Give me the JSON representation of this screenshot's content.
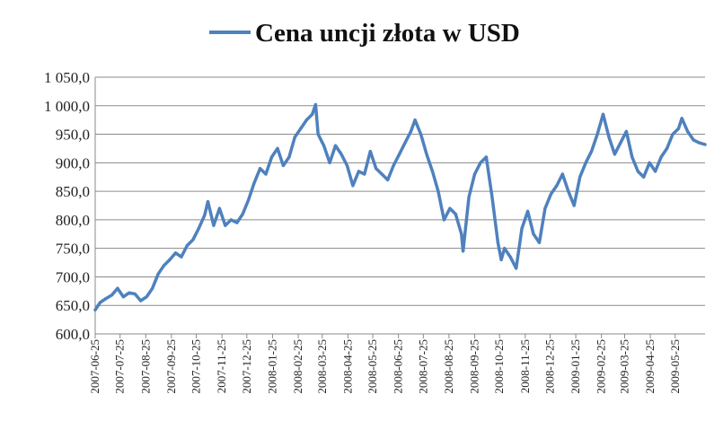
{
  "chart_data": {
    "type": "line",
    "title": "",
    "xlabel": "",
    "ylabel": "",
    "ylim": [
      600,
      1050
    ],
    "y_ticks": [
      "600,0",
      "650,0",
      "700,0",
      "750,0",
      "800,0",
      "850,0",
      "900,0",
      "950,0",
      "1 000,0",
      "1 050,0"
    ],
    "y_tick_values": [
      600,
      650,
      700,
      750,
      800,
      850,
      900,
      950,
      1000,
      1050
    ],
    "x_ticks": [
      "2007-06-25",
      "2007-07-25",
      "2007-08-25",
      "2007-09-25",
      "2007-10-25",
      "2007-11-25",
      "2007-12-25",
      "2008-01-25",
      "2008-02-25",
      "2008-03-25",
      "2008-04-25",
      "2008-05-25",
      "2008-06-25",
      "2008-07-25",
      "2008-08-25",
      "2008-09-25",
      "2008-10-25",
      "2008-11-25",
      "2008-12-25",
      "2009-01-25",
      "2009-02-25",
      "2009-03-25",
      "2009-04-25",
      "2009-05-25"
    ],
    "x_range": [
      "2007-06-25",
      "2009-06-30"
    ],
    "grid": true,
    "legend_position": "top",
    "series": [
      {
        "name": "Cena uncji złota w USD",
        "color": "#4f81bd",
        "points": [
          [
            "2007-06-25",
            642
          ],
          [
            "2007-07-01",
            655
          ],
          [
            "2007-07-08",
            662
          ],
          [
            "2007-07-15",
            668
          ],
          [
            "2007-07-22",
            680
          ],
          [
            "2007-07-29",
            665
          ],
          [
            "2007-08-05",
            672
          ],
          [
            "2007-08-12",
            670
          ],
          [
            "2007-08-19",
            658
          ],
          [
            "2007-08-26",
            665
          ],
          [
            "2007-09-02",
            680
          ],
          [
            "2007-09-09",
            705
          ],
          [
            "2007-09-16",
            720
          ],
          [
            "2007-09-23",
            730
          ],
          [
            "2007-09-30",
            742
          ],
          [
            "2007-10-07",
            735
          ],
          [
            "2007-10-14",
            755
          ],
          [
            "2007-10-21",
            765
          ],
          [
            "2007-10-28",
            785
          ],
          [
            "2007-11-04",
            808
          ],
          [
            "2007-11-08",
            832
          ],
          [
            "2007-11-15",
            790
          ],
          [
            "2007-11-22",
            820
          ],
          [
            "2007-11-29",
            790
          ],
          [
            "2007-12-06",
            800
          ],
          [
            "2007-12-13",
            795
          ],
          [
            "2007-12-20",
            810
          ],
          [
            "2007-12-27",
            835
          ],
          [
            "2008-01-03",
            865
          ],
          [
            "2008-01-10",
            890
          ],
          [
            "2008-01-17",
            880
          ],
          [
            "2008-01-24",
            910
          ],
          [
            "2008-01-31",
            925
          ],
          [
            "2008-02-07",
            895
          ],
          [
            "2008-02-14",
            910
          ],
          [
            "2008-02-21",
            945
          ],
          [
            "2008-02-28",
            960
          ],
          [
            "2008-03-06",
            975
          ],
          [
            "2008-03-13",
            985
          ],
          [
            "2008-03-17",
            1002
          ],
          [
            "2008-03-20",
            950
          ],
          [
            "2008-03-27",
            930
          ],
          [
            "2008-04-03",
            900
          ],
          [
            "2008-04-10",
            930
          ],
          [
            "2008-04-17",
            915
          ],
          [
            "2008-04-24",
            895
          ],
          [
            "2008-05-01",
            860
          ],
          [
            "2008-05-08",
            885
          ],
          [
            "2008-05-15",
            880
          ],
          [
            "2008-05-22",
            920
          ],
          [
            "2008-05-29",
            890
          ],
          [
            "2008-06-05",
            880
          ],
          [
            "2008-06-12",
            870
          ],
          [
            "2008-06-19",
            895
          ],
          [
            "2008-06-26",
            915
          ],
          [
            "2008-07-03",
            935
          ],
          [
            "2008-07-10",
            955
          ],
          [
            "2008-07-15",
            975
          ],
          [
            "2008-07-22",
            950
          ],
          [
            "2008-07-29",
            915
          ],
          [
            "2008-08-05",
            885
          ],
          [
            "2008-08-12",
            850
          ],
          [
            "2008-08-19",
            800
          ],
          [
            "2008-08-26",
            820
          ],
          [
            "2008-09-02",
            810
          ],
          [
            "2008-09-09",
            775
          ],
          [
            "2008-09-11",
            745
          ],
          [
            "2008-09-18",
            840
          ],
          [
            "2008-09-25",
            880
          ],
          [
            "2008-10-02",
            900
          ],
          [
            "2008-10-09",
            910
          ],
          [
            "2008-10-16",
            840
          ],
          [
            "2008-10-23",
            760
          ],
          [
            "2008-10-27",
            730
          ],
          [
            "2008-10-31",
            750
          ],
          [
            "2008-11-07",
            735
          ],
          [
            "2008-11-14",
            715
          ],
          [
            "2008-11-21",
            785
          ],
          [
            "2008-11-28",
            815
          ],
          [
            "2008-12-05",
            775
          ],
          [
            "2008-12-12",
            760
          ],
          [
            "2008-12-19",
            820
          ],
          [
            "2008-12-26",
            845
          ],
          [
            "2009-01-02",
            860
          ],
          [
            "2009-01-09",
            880
          ],
          [
            "2009-01-16",
            850
          ],
          [
            "2009-01-23",
            825
          ],
          [
            "2009-01-30",
            875
          ],
          [
            "2009-02-06",
            900
          ],
          [
            "2009-02-13",
            920
          ],
          [
            "2009-02-20",
            950
          ],
          [
            "2009-02-27",
            985
          ],
          [
            "2009-03-06",
            945
          ],
          [
            "2009-03-13",
            915
          ],
          [
            "2009-03-20",
            935
          ],
          [
            "2009-03-27",
            955
          ],
          [
            "2009-04-03",
            910
          ],
          [
            "2009-04-10",
            885
          ],
          [
            "2009-04-17",
            875
          ],
          [
            "2009-04-24",
            900
          ],
          [
            "2009-05-01",
            885
          ],
          [
            "2009-05-08",
            910
          ],
          [
            "2009-05-15",
            925
          ],
          [
            "2009-05-22",
            950
          ],
          [
            "2009-05-29",
            960
          ],
          [
            "2009-06-02",
            978
          ],
          [
            "2009-06-09",
            955
          ],
          [
            "2009-06-16",
            940
          ],
          [
            "2009-06-23",
            935
          ],
          [
            "2009-06-30",
            932
          ]
        ]
      }
    ]
  }
}
